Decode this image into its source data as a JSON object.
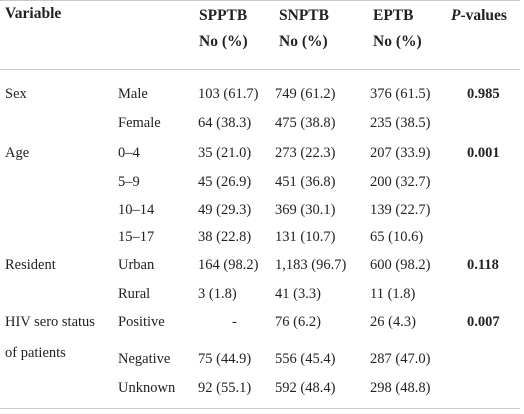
{
  "header": {
    "variable": "Variable",
    "col1_line1": "SPPTB",
    "col1_line2": "No (%)",
    "col2_line1": "SNPTB",
    "col2_line2": "No (%)",
    "col3_line1": "EPTB",
    "col3_line2": "No (%)",
    "pvalue_italic": "P",
    "pvalue_rest": "-values"
  },
  "rows": [
    {
      "variable": "Sex",
      "category": "Male",
      "spptb": "103 (61.7)",
      "snptb": "749 (61.2)",
      "eptb": "376 (61.5)",
      "p": "0.985"
    },
    {
      "variable": "",
      "category": "Female",
      "spptb": "64 (38.3)",
      "snptb": "475 (38.8)",
      "eptb": "235 (38.5)",
      "p": ""
    },
    {
      "variable": "Age",
      "category": "0–4",
      "spptb": "35 (21.0)",
      "snptb": "273 (22.3)",
      "eptb": "207 (33.9)",
      "p": "0.001"
    },
    {
      "variable": "",
      "category": "5–9",
      "spptb": "45 (26.9)",
      "snptb": "451 (36.8)",
      "eptb": "200 (32.7)",
      "p": ""
    },
    {
      "variable": "",
      "category": "10–14",
      "spptb": "49 (29.3)",
      "snptb": "369 (30.1)",
      "eptb": "139 (22.7)",
      "p": ""
    },
    {
      "variable": "",
      "category": "15–17",
      "spptb": "38 (22.8)",
      "snptb": "131 (10.7)",
      "eptb": "65 (10.6)",
      "p": ""
    },
    {
      "variable": "Resident",
      "category": "Urban",
      "spptb": "164 (98.2)",
      "snptb": "1,183 (96.7)",
      "eptb": "600 (98.2)",
      "p": "0.118"
    },
    {
      "variable": "",
      "category": "Rural",
      "spptb": "3 (1.8)",
      "snptb": "41 (3.3)",
      "eptb": "11 (1.8)",
      "p": ""
    },
    {
      "variable": "HIV sero status",
      "category": "Positive",
      "spptb": "-",
      "snptb": "76 (6.2)",
      "eptb": "26 (4.3)",
      "p": "0.007"
    },
    {
      "variable": "of patients",
      "category": "Negative",
      "spptb": "75 (44.9)",
      "snptb": "556 (45.4)",
      "eptb": "287 (47.0)",
      "p": ""
    },
    {
      "variable": "",
      "category": "Unknown",
      "spptb": "92 (55.1)",
      "snptb": "592 (48.4)",
      "eptb": "298 (48.8)",
      "p": ""
    }
  ]
}
